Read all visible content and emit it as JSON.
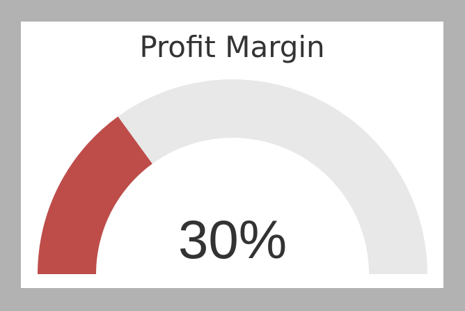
{
  "chart_data": {
    "type": "gauge",
    "title": "Profit Margin",
    "value": 30,
    "value_label": "30%",
    "min": 0,
    "max": 100,
    "colors": {
      "value_arc": "#be4d4a",
      "track_arc": "#e8e8e8",
      "text": "#333333",
      "card_background": "#ffffff",
      "page_background": "#b2b2b2"
    }
  }
}
